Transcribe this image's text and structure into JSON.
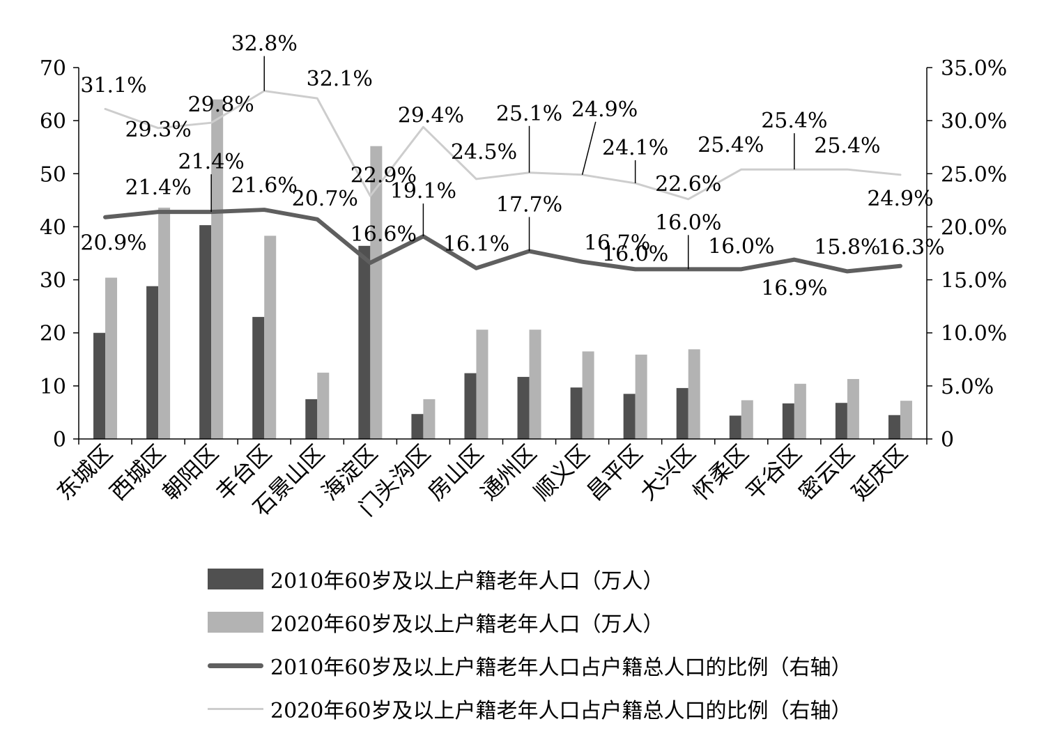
{
  "colors": {
    "bar_2010": "#505050",
    "bar_2020": "#b3b3b3",
    "line_2010": "#5f5f5f",
    "line_2020": "#cdcdcd",
    "axis": "#000000"
  },
  "chart_data": {
    "type": "bar+line",
    "categories": [
      "东城区",
      "西城区",
      "朝阳区",
      "丰台区",
      "石景山区",
      "海淀区",
      "门头沟区",
      "房山区",
      "通州区",
      "顺义区",
      "昌平区",
      "大兴区",
      "怀柔区",
      "平谷区",
      "密云区",
      "延庆区"
    ],
    "left_axis": {
      "ylim": [
        0,
        70
      ],
      "ticks": [
        "0",
        "10",
        "20",
        "30",
        "40",
        "50",
        "60",
        "70"
      ]
    },
    "right_axis": {
      "ylim": [
        0,
        35
      ],
      "ticks": [
        "0",
        "5.0%",
        "10.0%",
        "15.0%",
        "20.0%",
        "25.0%",
        "30.0%",
        "35.0%"
      ]
    },
    "series": [
      {
        "name": "2010年60岁及以上户籍老年人口（万人）",
        "type": "bar",
        "axis": "left",
        "values": [
          20.0,
          28.8,
          40.3,
          23.0,
          7.5,
          36.4,
          4.7,
          12.4,
          11.7,
          9.7,
          8.5,
          9.6,
          4.4,
          6.7,
          6.8,
          4.5
        ]
      },
      {
        "name": "2020年60岁及以上户籍老年人口（万人）",
        "type": "bar",
        "axis": "left",
        "values": [
          30.4,
          43.6,
          64.0,
          38.3,
          12.5,
          55.2,
          7.5,
          20.6,
          20.6,
          16.5,
          15.9,
          16.9,
          7.3,
          10.4,
          11.3,
          7.2
        ]
      },
      {
        "name": "2010年60岁及以上户籍老年人口占户籍总人口的比例（右轴）",
        "type": "line",
        "axis": "right",
        "values": [
          20.9,
          21.4,
          21.4,
          21.6,
          20.7,
          16.6,
          19.1,
          16.1,
          17.7,
          16.7,
          16.0,
          16.0,
          16.0,
          16.9,
          15.8,
          16.3
        ],
        "labels": [
          "20.9%",
          "21.4%",
          "21.4%",
          "21.6%",
          "20.7%",
          "16.6%",
          "19.1%",
          "16.1%",
          "17.7%",
          "16.7%",
          "16.0%",
          "16.0%",
          "16.0%",
          "16.9%",
          "15.8%",
          "16.3%"
        ]
      },
      {
        "name": "2020年60岁及以上户籍老年人口占户籍总人口的比例（右轴）",
        "type": "line",
        "axis": "right",
        "values": [
          31.1,
          29.3,
          29.8,
          32.8,
          32.1,
          22.9,
          29.4,
          24.5,
          25.1,
          24.9,
          24.1,
          22.6,
          25.4,
          25.4,
          25.4,
          24.9
        ],
        "labels": [
          "31.1%",
          "29.3%",
          "29.8%",
          "32.8%",
          "32.1%",
          "22.9%",
          "29.4%",
          "24.5%",
          "25.1%",
          "24.9%",
          "24.1%",
          "22.6%",
          "25.4%",
          "25.4%",
          "25.4%",
          "24.9%"
        ]
      }
    ],
    "legend_position": "bottom"
  }
}
